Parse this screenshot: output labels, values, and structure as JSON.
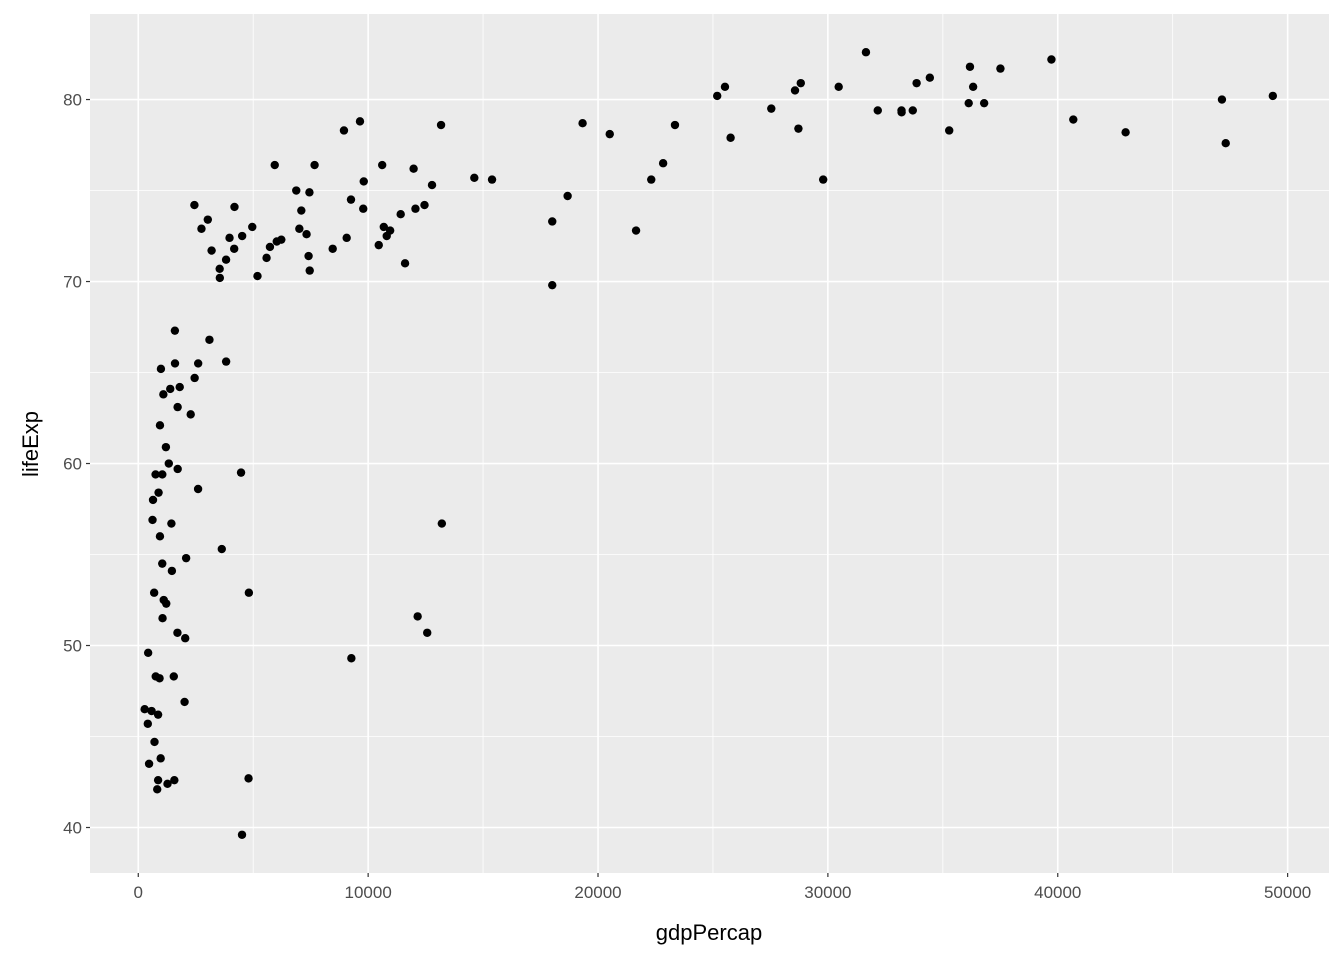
{
  "chart_data": {
    "type": "scatter",
    "title": "",
    "xlabel": "gdpPercap",
    "ylabel": "lifeExp",
    "xlim": [
      -2100,
      51800
    ],
    "ylim": [
      37.5,
      84.7
    ],
    "xticks": [
      0,
      10000,
      20000,
      30000,
      40000,
      50000
    ],
    "yticks": [
      40,
      50,
      60,
      70,
      80
    ],
    "xtick_labels": [
      "0",
      "10000",
      "20000",
      "30000",
      "40000",
      "50000"
    ],
    "ytick_labels": [
      "40",
      "50",
      "60",
      "70",
      "80"
    ],
    "grid": true,
    "point_color": "#000000",
    "panel_background": "#EBEBEB",
    "points": [
      [
        975,
        43.8
      ],
      [
        5937,
        76.4
      ],
      [
        6223,
        72.3
      ],
      [
        4797,
        42.7
      ],
      [
        12779,
        75.3
      ],
      [
        34435,
        81.2
      ],
      [
        36126,
        79.8
      ],
      [
        29796,
        75.6
      ],
      [
        1391,
        64.1
      ],
      [
        33693,
        79.4
      ],
      [
        1441,
        56.7
      ],
      [
        3822,
        65.6
      ],
      [
        7446,
        74.9
      ],
      [
        12570,
        50.7
      ],
      [
        9066,
        72.4
      ],
      [
        10681,
        73.0
      ],
      [
        1217,
        52.3
      ],
      [
        430,
        49.6
      ],
      [
        1714,
        59.7
      ],
      [
        2042,
        50.4
      ],
      [
        36319,
        80.7
      ],
      [
        706,
        44.7
      ],
      [
        1704,
        50.7
      ],
      [
        13172,
        78.6
      ],
      [
        4959,
        73.0
      ],
      [
        7007,
        72.9
      ],
      [
        986,
        65.2
      ],
      [
        278,
        46.5
      ],
      [
        3633,
        55.3
      ],
      [
        9645,
        78.8
      ],
      [
        1545,
        48.3
      ],
      [
        14619,
        75.7
      ],
      [
        8948,
        78.3
      ],
      [
        22833,
        76.5
      ],
      [
        35278,
        78.3
      ],
      [
        2082,
        54.8
      ],
      [
        6025,
        72.2
      ],
      [
        6873,
        75.0
      ],
      [
        5581,
        71.3
      ],
      [
        5728,
        71.9
      ],
      [
        12154,
        51.6
      ],
      [
        641,
        58.0
      ],
      [
        691,
        52.9
      ],
      [
        33207,
        79.3
      ],
      [
        30470,
        80.7
      ],
      [
        13206,
        56.7
      ],
      [
        753,
        59.4
      ],
      [
        32170,
        79.4
      ],
      [
        1328,
        60.0
      ],
      [
        27538,
        79.5
      ],
      [
        5186,
        70.3
      ],
      [
        943,
        56.0
      ],
      [
        579,
        46.4
      ],
      [
        1202,
        60.9
      ],
      [
        3548,
        70.2
      ],
      [
        3541,
        70.7
      ],
      [
        39725,
        82.2
      ],
      [
        18009,
        73.3
      ],
      [
        36181,
        81.8
      ],
      [
        2452,
        64.7
      ],
      [
        11606,
        71.0
      ],
      [
        4471,
        59.5
      ],
      [
        40676,
        78.9
      ],
      [
        25523,
        80.7
      ],
      [
        28570,
        80.5
      ],
      [
        7321,
        72.6
      ],
      [
        31656,
        82.6
      ],
      [
        4519,
        72.5
      ],
      [
        1463,
        54.1
      ],
      [
        1593,
        67.3
      ],
      [
        23348,
        78.6
      ],
      [
        47307,
        77.6
      ],
      [
        10461,
        72.0
      ],
      [
        1569,
        42.6
      ],
      [
        415,
        45.7
      ],
      [
        12058,
        74.0
      ],
      [
        1045,
        59.4
      ],
      [
        759,
        48.3
      ],
      [
        12452,
        74.2
      ],
      [
        1043,
        54.5
      ],
      [
        1803,
        64.2
      ],
      [
        10957,
        72.8
      ],
      [
        11978,
        76.2
      ],
      [
        3096,
        66.8
      ],
      [
        9254,
        74.5
      ],
      [
        3820,
        71.2
      ],
      [
        824,
        42.1
      ],
      [
        944,
        62.1
      ],
      [
        4811,
        52.9
      ],
      [
        1091,
        63.8
      ],
      [
        36798,
        79.8
      ],
      [
        25185,
        80.2
      ],
      [
        2749,
        72.9
      ],
      [
        620,
        56.9
      ],
      [
        2014,
        46.9
      ],
      [
        49357,
        80.2
      ],
      [
        22316,
        75.6
      ],
      [
        2606,
        65.5
      ],
      [
        9809,
        75.5
      ],
      [
        4173,
        71.8
      ],
      [
        7409,
        71.4
      ],
      [
        3190,
        71.7
      ],
      [
        15390,
        75.6
      ],
      [
        20510,
        78.1
      ],
      [
        19329,
        78.7
      ],
      [
        7670,
        76.4
      ],
      [
        10808,
        72.5
      ],
      [
        863,
        46.2
      ],
      [
        1598,
        65.5
      ],
      [
        21655,
        72.8
      ],
      [
        1712,
        63.1
      ],
      [
        9787,
        74.0
      ],
      [
        863,
        42.6
      ],
      [
        47143,
        80.0
      ],
      [
        18678,
        74.7
      ],
      [
        25768,
        77.9
      ],
      [
        926,
        48.2
      ],
      [
        9270,
        49.3
      ],
      [
        28821,
        80.9
      ],
      [
        3970,
        72.4
      ],
      [
        2602,
        58.6
      ],
      [
        4513,
        39.6
      ],
      [
        33860,
        80.9
      ],
      [
        37506,
        81.7
      ],
      [
        4185,
        74.1
      ],
      [
        28718,
        78.4
      ],
      [
        1107,
        52.5
      ],
      [
        7458,
        70.6
      ],
      [
        883,
        58.4
      ],
      [
        18009,
        69.8
      ],
      [
        7093,
        73.9
      ],
      [
        8458,
        71.8
      ],
      [
        1056,
        51.5
      ],
      [
        33203,
        79.4
      ],
      [
        42952,
        78.2
      ],
      [
        10611,
        76.4
      ],
      [
        11416,
        73.7
      ],
      [
        2442,
        74.2
      ],
      [
        3025,
        73.4
      ],
      [
        2281,
        62.7
      ],
      [
        1271,
        42.4
      ],
      [
        470,
        43.5
      ]
    ]
  }
}
